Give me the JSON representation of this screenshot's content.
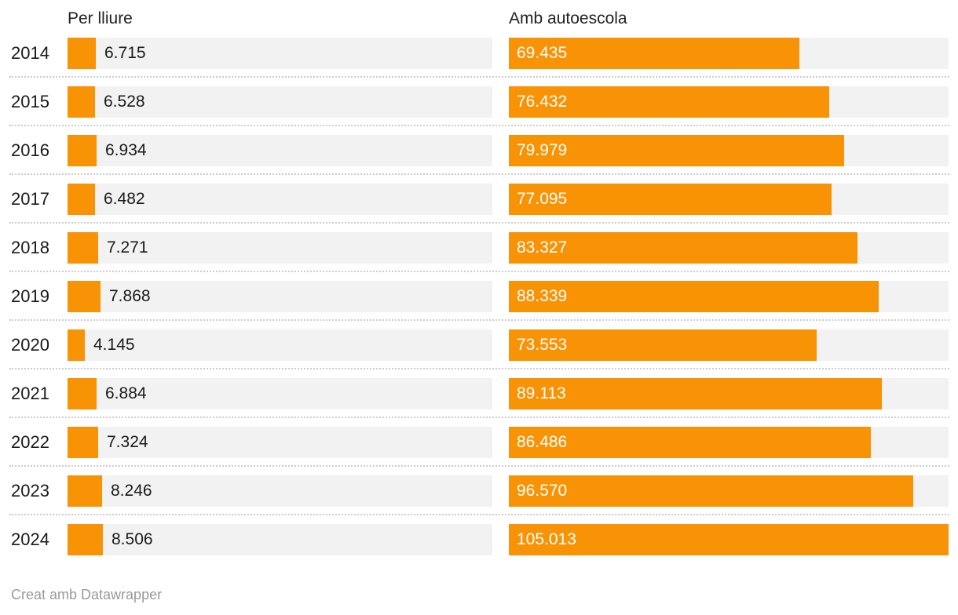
{
  "chart_data": {
    "type": "bar",
    "variant": "split-bars",
    "orientation": "horizontal",
    "title": "",
    "xlabel": "",
    "ylabel": "",
    "grid": false,
    "legend_position": "column-headers",
    "xlim": [
      0,
      105013
    ],
    "categories": [
      "2014",
      "2015",
      "2016",
      "2017",
      "2018",
      "2019",
      "2020",
      "2021",
      "2022",
      "2023",
      "2024"
    ],
    "series": [
      {
        "name": "Per lliure",
        "values": [
          6715,
          6528,
          6934,
          6482,
          7271,
          7868,
          4145,
          6884,
          7324,
          8246,
          8506
        ],
        "labels": [
          "6.715",
          "6.528",
          "6.934",
          "6.482",
          "7.271",
          "7.868",
          "4.145",
          "6.884",
          "7.324",
          "8.246",
          "8.506"
        ],
        "label_position": "outside"
      },
      {
        "name": "Amb autoescola",
        "values": [
          69435,
          76432,
          79979,
          77095,
          83327,
          88339,
          73553,
          89113,
          86486,
          96570,
          105013
        ],
        "labels": [
          "69.435",
          "76.432",
          "79.979",
          "77.095",
          "83.327",
          "88.339",
          "73.553",
          "89.113",
          "86.486",
          "96.570",
          "105.013"
        ],
        "label_position": "inside"
      }
    ],
    "bar_color": "#f99306",
    "track_color": "#f2f2f2",
    "separator_color": "#cccccc",
    "label_color_inside": "#ffffff",
    "label_color_outside": "#1a1a1a"
  },
  "footer": {
    "credit": "Creat amb Datawrapper"
  }
}
